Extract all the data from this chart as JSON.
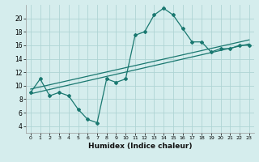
{
  "xlabel": "Humidex (Indice chaleur)",
  "bg_color": "#d5eded",
  "grid_color": "#afd4d4",
  "line_color": "#1a7870",
  "xlim": [
    -0.5,
    23.5
  ],
  "ylim": [
    3,
    22
  ],
  "xticks": [
    0,
    1,
    2,
    3,
    4,
    5,
    6,
    7,
    8,
    9,
    10,
    11,
    12,
    13,
    14,
    15,
    16,
    17,
    18,
    19,
    20,
    21,
    22,
    23
  ],
  "yticks": [
    4,
    6,
    8,
    10,
    12,
    14,
    16,
    18,
    20
  ],
  "curve1_x": [
    0,
    1,
    2,
    3,
    4,
    5,
    6,
    7,
    8,
    9,
    10,
    11,
    12,
    13,
    14,
    15,
    16,
    17,
    18,
    19,
    20,
    21,
    22,
    23
  ],
  "curve1_y": [
    9.0,
    11.0,
    8.5,
    9.0,
    8.5,
    6.5,
    5.0,
    4.5,
    11.0,
    10.5,
    11.0,
    17.5,
    18.0,
    20.5,
    21.5,
    20.5,
    18.5,
    16.5,
    16.5,
    15.0,
    15.5,
    15.5,
    16.0,
    16.0
  ],
  "curve2_x": [
    0,
    23
  ],
  "curve2_y": [
    8.8,
    16.2
  ],
  "curve3_x": [
    0,
    23
  ],
  "curve3_y": [
    9.5,
    16.8
  ]
}
